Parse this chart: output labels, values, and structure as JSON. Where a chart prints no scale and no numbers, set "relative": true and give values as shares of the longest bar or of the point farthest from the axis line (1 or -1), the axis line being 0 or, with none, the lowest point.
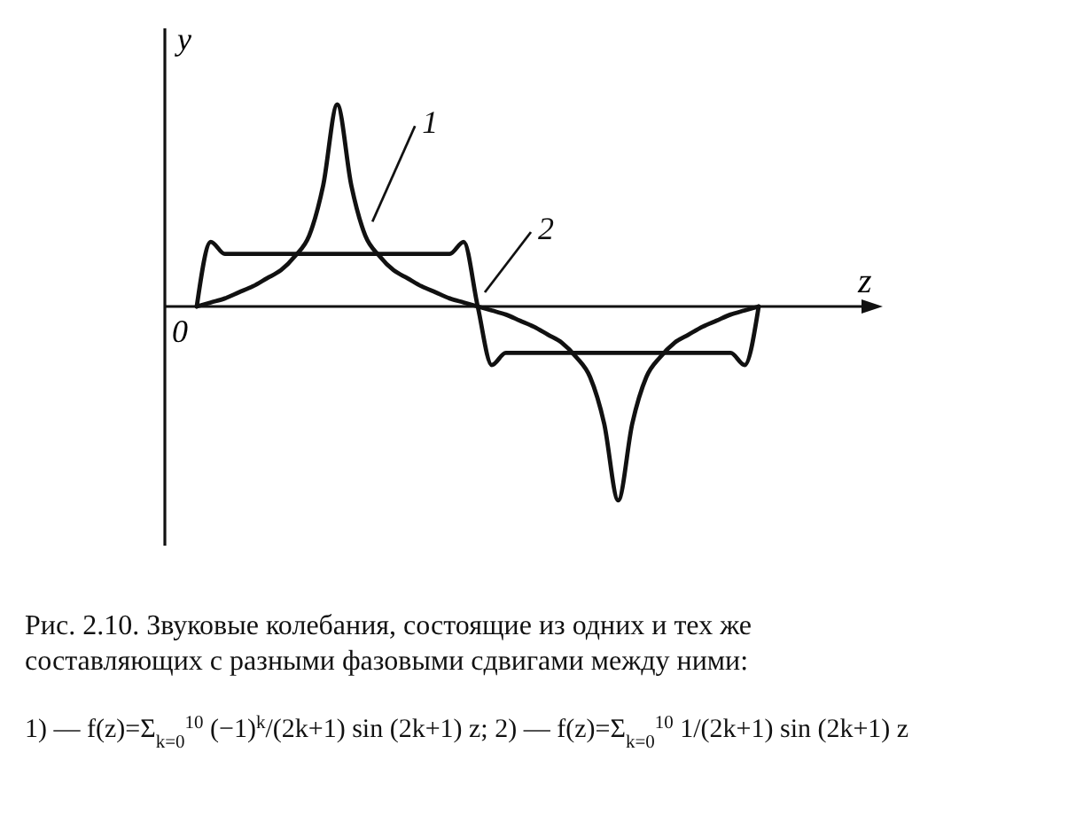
{
  "chart_data": {
    "type": "line",
    "relative": true,
    "title": "Рис. 2.10. Звуковые колебания, состоящие из одних и тех же составляющих с разными фазовыми сдвигами между ними:",
    "xlabel": "z",
    "ylabel": "y",
    "categories": [
      null,
      null,
      null,
      null,
      null,
      null,
      null,
      null,
      null,
      null,
      null,
      null,
      null,
      null,
      null,
      null,
      null,
      null,
      null,
      null,
      null,
      null,
      null,
      null,
      null,
      null,
      null,
      null,
      null,
      null,
      null,
      null,
      null,
      null,
      null,
      null,
      null,
      null,
      null,
      null,
      null
    ],
    "series": [
      {
        "name": "1",
        "color": "#111111",
        "values": [
          0,
          0.02,
          0.04,
          0.07,
          0.1,
          0.14,
          0.18,
          0.25,
          0.35,
          0.6,
          1,
          0.6,
          0.35,
          0.25,
          0.18,
          0.14,
          0.1,
          0.07,
          0.04,
          0.02,
          0,
          -0.02,
          -0.04,
          -0.07,
          -0.1,
          -0.14,
          -0.18,
          -0.25,
          -0.35,
          -0.58,
          -0.96,
          -0.58,
          -0.35,
          -0.25,
          -0.18,
          -0.14,
          -0.1,
          -0.07,
          -0.04,
          -0.02,
          0
        ]
      },
      {
        "name": "2",
        "color": "#111111",
        "values": [
          0,
          0.32,
          0.26,
          0.26,
          0.26,
          0.26,
          0.26,
          0.26,
          0.26,
          0.26,
          0.26,
          0.26,
          0.26,
          0.26,
          0.26,
          0.26,
          0.26,
          0.26,
          0.26,
          0.32,
          0,
          -0.29,
          -0.23,
          -0.23,
          -0.23,
          -0.23,
          -0.23,
          -0.23,
          -0.23,
          -0.23,
          -0.23,
          -0.23,
          -0.23,
          -0.23,
          -0.23,
          -0.23,
          -0.23,
          -0.23,
          -0.23,
          -0.29,
          0
        ]
      }
    ],
    "annotations": [
      "0",
      "1) — f(z)=Σ$_{k=0}$$^{10}$ (−1)$^{k}$/(2k+1) sin (2k+1) z;  2) — f(z)=Σ$_{k=0}$$^{10}$ 1/(2k+1) sin (2k+1) z"
    ],
    "marker": "none",
    "line_style": "solid",
    "grid": false,
    "legend": false
  }
}
